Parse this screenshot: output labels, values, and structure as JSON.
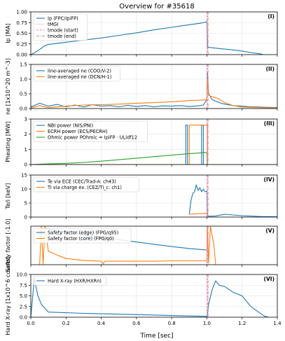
{
  "figure": {
    "title": "Overview for #35618",
    "xlabel": "Time [sec]",
    "xlim": [
      0.0,
      1.4
    ],
    "xticks": [
      "0.0",
      "0.2",
      "0.4",
      "0.6",
      "0.8",
      "1.0",
      "1.2",
      "1.4"
    ]
  },
  "colors": {
    "blue": "#1f77b4",
    "orange": "#ff7f0e",
    "green": "#2ca02c",
    "tMGI": "#c0a0e0",
    "tmode": "#f08080",
    "grid": "#e0e0e0"
  },
  "markers": {
    "labels": [
      "tMGI",
      "tmode (start)",
      "tmode (end)"
    ],
    "tMGI": 1.0,
    "tmode_start": 1.003,
    "tmode_end": 1.007
  },
  "chart_data": [
    {
      "type": "line",
      "panel_tag": "(I)",
      "ylabel": "Ip [MA]",
      "ylim": [
        0,
        1.0
      ],
      "yticks": [
        "0.00",
        "0.25",
        "0.50",
        "0.75",
        "1.00"
      ],
      "legend_position": "top-left",
      "series": [
        {
          "name": "Ip (FPC/IpiFP)",
          "color": "blue",
          "x": [
            0.0,
            0.02,
            0.05,
            0.08,
            0.1,
            0.2,
            0.3,
            0.4,
            0.5,
            0.6,
            0.7,
            0.8,
            0.9,
            0.97,
            1.0,
            1.005,
            1.01,
            1.05,
            1.1,
            1.15,
            1.2,
            1.25,
            1.3,
            1.32
          ],
          "y": [
            0.0,
            0.04,
            0.12,
            0.21,
            0.24,
            0.29,
            0.34,
            0.39,
            0.45,
            0.51,
            0.58,
            0.64,
            0.7,
            0.74,
            0.77,
            0.15,
            0.17,
            0.15,
            0.13,
            0.11,
            0.08,
            0.05,
            0.02,
            0.0
          ]
        }
      ]
    },
    {
      "type": "line",
      "panel_tag": "(II)",
      "ylabel": "ne [1x10^20 m^-3]",
      "ylim": [
        0,
        1.5
      ],
      "yticks": [
        "0.0",
        "0.5",
        "1.0",
        "1.5"
      ],
      "legend_position": "top-left",
      "series": [
        {
          "name": "line-averaged ne (COO/V-2)",
          "color": "blue",
          "x": [
            0.0,
            0.05,
            0.1,
            0.15,
            0.2,
            0.25,
            0.3,
            0.35,
            0.4,
            0.45,
            0.5,
            0.55,
            0.6,
            0.65,
            0.7,
            0.75,
            0.8,
            0.85,
            0.9,
            0.95,
            0.98,
            1.0,
            1.003,
            1.01,
            1.03,
            1.05,
            1.08,
            1.1,
            1.15,
            1.2,
            1.25,
            1.3,
            1.35,
            1.4
          ],
          "y": [
            0.05,
            0.18,
            0.08,
            0.14,
            0.06,
            0.12,
            0.05,
            0.13,
            0.08,
            0.1,
            0.06,
            0.11,
            0.07,
            0.1,
            0.06,
            0.09,
            0.08,
            0.1,
            0.07,
            0.09,
            0.12,
            0.3,
            1.25,
            0.5,
            0.3,
            0.25,
            0.18,
            0.15,
            0.1,
            0.08,
            0.06,
            0.05,
            0.04,
            0.03
          ]
        },
        {
          "name": "line-averaged ne (DCN/H-1)",
          "color": "orange",
          "x": [
            0.0,
            0.05,
            0.1,
            0.2,
            0.3,
            0.4,
            0.5,
            0.6,
            0.7,
            0.8,
            0.9,
            0.95,
            1.0,
            1.003,
            1.01,
            1.03,
            1.06,
            1.08,
            1.1,
            1.15,
            1.2,
            1.3,
            1.4
          ],
          "y": [
            0.02,
            0.1,
            0.03,
            0.08,
            0.12,
            0.13,
            0.15,
            0.18,
            0.2,
            0.23,
            0.27,
            0.28,
            0.3,
            1.0,
            0.45,
            0.4,
            0.35,
            0.28,
            0.2,
            0.1,
            0.05,
            0.03,
            0.02
          ]
        }
      ]
    },
    {
      "type": "line",
      "panel_tag": "(III)",
      "ylabel": "Pheating [MW]",
      "ylim": [
        0,
        3
      ],
      "yticks": [
        "0",
        "1",
        "2",
        "3"
      ],
      "legend_position": "top-left",
      "series": [
        {
          "name": "NBI power (NIS/PNI)",
          "color": "blue",
          "x": [
            0.0,
            0.88,
            0.88,
            0.89,
            0.89,
            0.97,
            0.97,
            0.98,
            0.98,
            1.4
          ],
          "y": [
            0.0,
            0.0,
            2.6,
            2.6,
            0.0,
            0.0,
            2.6,
            2.6,
            0.0,
            0.0
          ]
        },
        {
          "name": "ECRH power (ECS/PECRH)",
          "color": "orange",
          "x": [
            0.0,
            0.9,
            0.9,
            1.003,
            1.003,
            1.4
          ],
          "y": [
            0.0,
            0.0,
            2.6,
            2.6,
            0.0,
            0.0
          ]
        },
        {
          "name": "Ohmic power POhmic = IpiFP · ULidf12",
          "color": "green",
          "x": [
            0.0,
            0.05,
            0.1,
            0.2,
            0.3,
            0.4,
            0.5,
            0.6,
            0.7,
            0.8,
            0.9,
            1.0,
            1.003,
            1.05,
            1.1,
            1.2,
            1.3,
            1.4
          ],
          "y": [
            0.0,
            0.02,
            0.04,
            0.08,
            0.14,
            0.22,
            0.32,
            0.42,
            0.52,
            0.62,
            0.72,
            0.8,
            0.0,
            0.0,
            0.0,
            0.0,
            0.0,
            0.0
          ]
        }
      ]
    },
    {
      "type": "line",
      "panel_tag": "(IV)",
      "ylabel": "Te/i [keV]",
      "ylim": [
        0,
        15
      ],
      "yticks": [
        "0",
        "5",
        "10",
        "15"
      ],
      "legend_position": "top-left",
      "series": [
        {
          "name": "Te via ECE (CEC/Trad-A: ch43)",
          "color": "blue",
          "x": [
            0.9,
            0.91,
            0.92,
            0.93,
            0.94,
            0.95,
            0.96,
            0.97,
            0.98,
            0.99,
            1.0,
            1.003,
            1.01,
            1.05,
            1.1,
            1.2,
            1.3,
            1.4
          ],
          "y": [
            1.0,
            6.0,
            8.5,
            9.0,
            11.5,
            9.5,
            10.5,
            9.0,
            10.0,
            9.0,
            9.2,
            0.2,
            0.3,
            0.4,
            1.0,
            0.5,
            0.2,
            0.1
          ]
        },
        {
          "name": "Ti via charge ex. (CEZ/Ti_c: ch1)",
          "color": "orange",
          "x": [
            0.9,
            0.95,
            1.0,
            1.003
          ],
          "y": [
            1.0,
            1.2,
            1.3,
            0.0
          ]
        }
      ]
    },
    {
      "type": "line",
      "panel_tag": "(V)",
      "ylabel": "Safety factor [-1.0]",
      "ylim": [
        0,
        10
      ],
      "yticks": [],
      "legend_position": "top-left",
      "series": [
        {
          "name": "Safety factor (edge) (FPG/q95)",
          "color": "blue",
          "x": [
            0.08,
            0.1,
            0.2,
            0.3,
            0.4,
            0.5,
            0.6,
            0.7,
            0.8,
            0.9,
            1.0
          ],
          "y": [
            9.5,
            9.3,
            8.5,
            7.8,
            7.1,
            6.5,
            5.9,
            5.3,
            4.7,
            4.2,
            3.8
          ]
        },
        {
          "name": "Safety factor (core) (FPG/q0)",
          "color": "orange",
          "x": [
            0.05,
            0.06,
            0.07,
            0.08,
            0.1,
            0.15,
            0.2,
            0.3,
            0.4,
            0.41,
            0.42,
            0.5,
            0.6,
            0.7,
            0.8,
            0.9,
            1.0,
            1.003,
            1.01,
            1.02,
            1.04,
            1.05
          ],
          "y": [
            0.0,
            10.0,
            0.0,
            10.0,
            3.5,
            2.5,
            1.6,
            1.1,
            0.9,
            0.2,
            0.9,
            0.9,
            0.9,
            0.9,
            1.0,
            1.0,
            1.0,
            10.0,
            0.5,
            10.0,
            5.0,
            0.0
          ]
        }
      ]
    },
    {
      "type": "line",
      "panel_tag": "(VI)",
      "ylabel": "Hard X-ray [1x10^6 counts]",
      "ylim": [
        0,
        10
      ],
      "yticks": [
        "0.0",
        "2.5",
        "5.0",
        "7.5",
        "10.0"
      ],
      "legend_position": "top-left",
      "series": [
        {
          "name": "Hard X-ray (HXR/HXRn)",
          "color": "blue",
          "x": [
            0.0,
            0.02,
            0.04,
            0.06,
            0.1,
            0.3,
            0.5,
            0.7,
            0.9,
            1.0,
            1.003,
            1.01,
            1.03,
            1.05,
            1.07,
            1.1,
            1.15,
            1.2,
            1.25,
            1.3,
            1.33,
            1.35
          ],
          "y": [
            0.0,
            9.0,
            5.0,
            3.0,
            1.2,
            0.9,
            0.7,
            0.5,
            0.3,
            0.2,
            0.5,
            3.0,
            6.5,
            8.5,
            7.5,
            7.2,
            5.8,
            5.0,
            2.5,
            1.0,
            0.2,
            0.0
          ]
        }
      ]
    }
  ]
}
